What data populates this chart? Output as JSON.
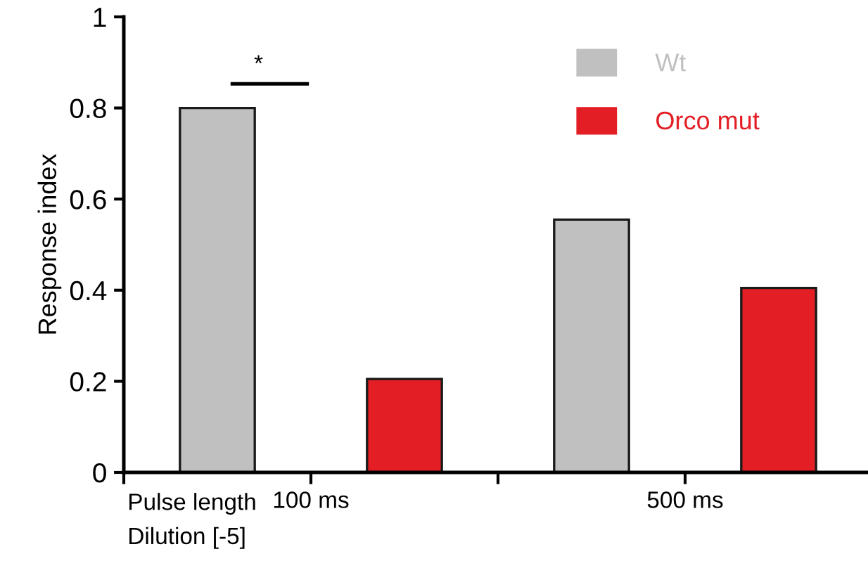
{
  "chart_data": {
    "type": "bar",
    "ylabel": "Response index",
    "xlabel": "Pulse length",
    "categories": [
      "100 ms",
      "500 ms"
    ],
    "series": [
      {
        "name": "Wt",
        "color": "#c0c0c0",
        "values": [
          0.8,
          0.555
        ]
      },
      {
        "name": "Orco mut",
        "color": "#e31e24",
        "values": [
          0.205,
          0.405
        ]
      }
    ],
    "ylim": [
      0,
      1
    ],
    "yticks": [
      0,
      0.2,
      0.4,
      0.6,
      0.8,
      1
    ],
    "grid": false,
    "legend": "top right",
    "annotations": [
      "*",
      "Dilution [-5]"
    ]
  }
}
